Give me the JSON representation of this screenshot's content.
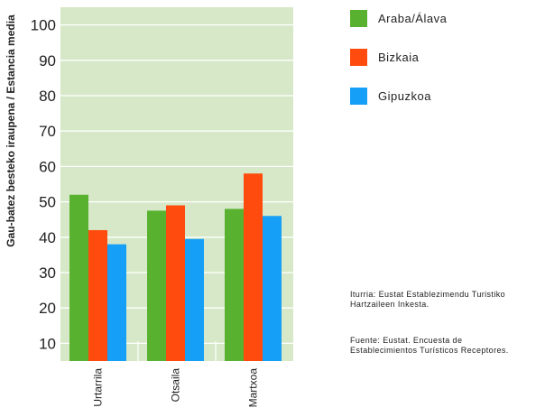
{
  "chart_data": {
    "type": "bar",
    "ylabel": "Gau-batez besteko iraupena / Estancia media",
    "ylim": [
      5,
      105
    ],
    "yticks": [
      10,
      20,
      30,
      40,
      50,
      60,
      70,
      80,
      90,
      100
    ],
    "categories": [
      "Urtarrila",
      "Otsaila",
      "Martxoa"
    ],
    "series": [
      {
        "name": "Araba/Álava",
        "color": "#58b22f",
        "values": [
          52,
          47.5,
          48
        ]
      },
      {
        "name": "Bizkaia",
        "color": "#ff4c0e",
        "values": [
          42,
          49,
          58
        ]
      },
      {
        "name": "Gipuzkoa",
        "color": "#159ff7",
        "values": [
          38,
          39.5,
          46
        ]
      }
    ],
    "legend_position": "right",
    "grid": true
  },
  "notes": {
    "eu": [
      "Iturria: Eustat Establezimendu Turistiko",
      "Hartzaileen Inkesta."
    ],
    "es": [
      "Fuente: Eustat. Encuesta de",
      "Establecimientos Turísticos Receptores."
    ]
  }
}
